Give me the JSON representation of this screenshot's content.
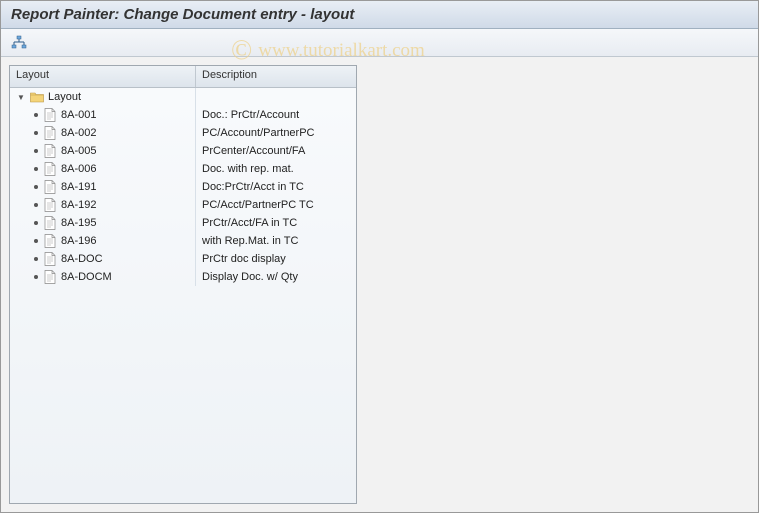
{
  "title": "Report Painter: Change Document entry - layout",
  "watermark": {
    "copyright": "©",
    "text": "www.tutorialkart.com"
  },
  "toolbar": {
    "hierarchy_icon": "hierarchy"
  },
  "tree": {
    "headers": {
      "layout": "Layout",
      "description": "Description"
    },
    "root": {
      "label": "Layout",
      "description": ""
    },
    "items": [
      {
        "code": "8A-001",
        "description": "Doc.: PrCtr/Account"
      },
      {
        "code": "8A-002",
        "description": "PC/Account/PartnerPC"
      },
      {
        "code": "8A-005",
        "description": "PrCenter/Account/FA"
      },
      {
        "code": "8A-006",
        "description": "Doc. with rep. mat."
      },
      {
        "code": "8A-191",
        "description": "Doc:PrCtr/Acct in TC"
      },
      {
        "code": "8A-192",
        "description": "PC/Acct/PartnerPC TC"
      },
      {
        "code": "8A-195",
        "description": "PrCtr/Acct/FA in TC"
      },
      {
        "code": "8A-196",
        "description": "with Rep.Mat. in TC"
      },
      {
        "code": "8A-DOC",
        "description": "PrCtr doc display"
      },
      {
        "code": "8A-DOCM",
        "description": "Display Doc. w/ Qty"
      }
    ]
  },
  "colors": {
    "titlebar_start": "#e8eef5",
    "titlebar_end": "#d0dae8",
    "folder_fill": "#f4d47a",
    "folder_stroke": "#b8923c",
    "doc_fill": "#ffffff",
    "doc_stroke": "#888888"
  }
}
